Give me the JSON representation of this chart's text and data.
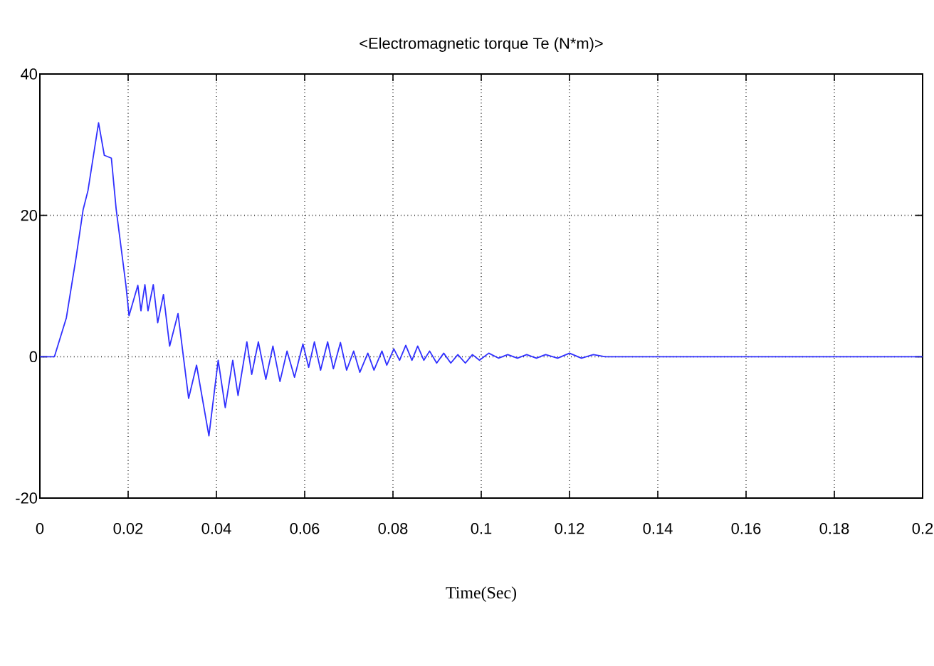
{
  "chart_data": {
    "type": "line",
    "title": "<Electromagnetic torque Te (N*m)>",
    "xlabel": "Time(Sec)",
    "xlim": [
      0,
      0.2
    ],
    "ylim": [
      -20,
      40
    ],
    "xticks": [
      0,
      0.02,
      0.04,
      0.06,
      0.08,
      0.1,
      0.12,
      0.14,
      0.16,
      0.18,
      0.2
    ],
    "yticks": [
      -20,
      0,
      20,
      40
    ],
    "grid": true,
    "series": [
      {
        "color": "#3030ff",
        "x": [
          0,
          0.0033,
          0.006,
          0.0082,
          0.0098,
          0.0109,
          0.0133,
          0.0146,
          0.0162,
          0.0173,
          0.0195,
          0.0202,
          0.0222,
          0.0229,
          0.0238,
          0.0245,
          0.0257,
          0.0267,
          0.028,
          0.0294,
          0.0313,
          0.0337,
          0.0355,
          0.0383,
          0.0404,
          0.042,
          0.0437,
          0.0449,
          0.0469,
          0.048,
          0.0495,
          0.0512,
          0.0528,
          0.0544,
          0.056,
          0.0577,
          0.0596,
          0.0609,
          0.0622,
          0.0636,
          0.0652,
          0.0665,
          0.0681,
          0.0695,
          0.0711,
          0.0725,
          0.0743,
          0.0757,
          0.0775,
          0.0786,
          0.0802,
          0.0815,
          0.0829,
          0.0843,
          0.0856,
          0.087,
          0.0883,
          0.0899,
          0.0915,
          0.0931,
          0.0947,
          0.0964,
          0.098,
          0.0996,
          0.1017,
          0.1039,
          0.106,
          0.1082,
          0.1103,
          0.1125,
          0.1146,
          0.1173,
          0.12,
          0.1227,
          0.1254,
          0.1281,
          0.2
        ],
        "values": [
          0,
          0,
          5.5,
          14,
          20.8,
          23.5,
          33.1,
          28.5,
          28.1,
          20.8,
          10.1,
          5.8,
          10.1,
          6.5,
          10.2,
          6.5,
          10.2,
          4.8,
          8.8,
          1.5,
          6.1,
          -5.9,
          -1.2,
          -11.2,
          -0.5,
          -7.2,
          -0.5,
          -5.5,
          2.1,
          -2.5,
          2.1,
          -3.2,
          1.5,
          -3.5,
          0.8,
          -2.9,
          1.8,
          -1.5,
          2.1,
          -1.9,
          2.1,
          -1.7,
          2.0,
          -1.9,
          0.8,
          -2.2,
          0.5,
          -1.9,
          0.8,
          -1.2,
          1.1,
          -0.5,
          1.6,
          -0.5,
          1.5,
          -0.5,
          0.8,
          -0.9,
          0.5,
          -0.9,
          0.3,
          -0.9,
          0.3,
          -0.5,
          0.5,
          -0.2,
          0.3,
          -0.2,
          0.3,
          -0.2,
          0.3,
          -0.2,
          0.5,
          -0.2,
          0.3,
          0,
          0
        ]
      }
    ]
  }
}
